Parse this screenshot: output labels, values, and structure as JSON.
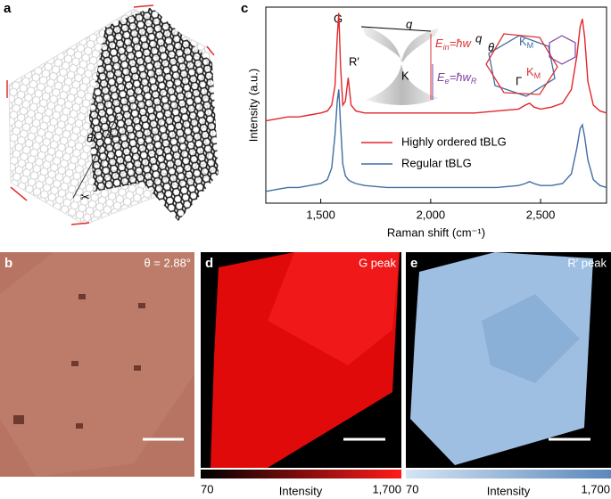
{
  "panels": {
    "a": {
      "label": "a",
      "angle": "θ"
    },
    "b": {
      "label": "b",
      "annotation": "θ = 2.88°"
    },
    "c": {
      "label": "c"
    },
    "d": {
      "label": "d",
      "annotation": "G peak",
      "colorbar": {
        "min": "70",
        "max": "1,700",
        "title": "Intensity"
      }
    },
    "e": {
      "label": "e",
      "annotation": "R′ peak",
      "colorbar": {
        "min": "70",
        "max": "1,700",
        "title": "Intensity"
      }
    }
  },
  "chart_data": {
    "type": "line",
    "x_label": "Raman shift (cm⁻¹)",
    "y_label": "Intensity (a.u.)",
    "x": [
      1250,
      1300,
      1350,
      1400,
      1450,
      1500,
      1530,
      1550,
      1565,
      1575,
      1582,
      1590,
      1600,
      1612,
      1625,
      1638,
      1660,
      1700,
      1800,
      1900,
      2000,
      2100,
      2200,
      2300,
      2400,
      2430,
      2450,
      2470,
      2500,
      2550,
      2600,
      2640,
      2665,
      2680,
      2690,
      2700,
      2715,
      2740,
      2770,
      2800
    ],
    "series": [
      {
        "name": "Highly ordered tBLG",
        "color": "#e3262b",
        "values": [
          0.42,
          0.43,
          0.44,
          0.44,
          0.45,
          0.46,
          0.47,
          0.5,
          0.6,
          0.85,
          0.97,
          0.7,
          0.5,
          0.52,
          0.64,
          0.5,
          0.47,
          0.46,
          0.46,
          0.46,
          0.46,
          0.46,
          0.46,
          0.47,
          0.48,
          0.5,
          0.51,
          0.49,
          0.48,
          0.49,
          0.51,
          0.58,
          0.75,
          0.9,
          0.94,
          0.85,
          0.62,
          0.5,
          0.47,
          0.46
        ]
      },
      {
        "name": "Regular tBLG",
        "color": "#3f6ea3",
        "values": [
          0.06,
          0.07,
          0.08,
          0.08,
          0.09,
          0.1,
          0.12,
          0.18,
          0.35,
          0.52,
          0.58,
          0.4,
          0.2,
          0.14,
          0.12,
          0.11,
          0.1,
          0.09,
          0.08,
          0.08,
          0.08,
          0.08,
          0.08,
          0.08,
          0.09,
          0.1,
          0.11,
          0.1,
          0.09,
          0.09,
          0.1,
          0.15,
          0.28,
          0.38,
          0.4,
          0.34,
          0.22,
          0.12,
          0.09,
          0.08
        ]
      }
    ],
    "xlim": [
      1250,
      2800
    ],
    "xticks": [
      {
        "value": 1500,
        "label": "1,500"
      },
      {
        "value": 2000,
        "label": "2,000"
      },
      {
        "value": 2500,
        "label": "2,500"
      }
    ],
    "ylim": [
      0,
      1
    ],
    "annotations": {
      "g": "G",
      "r": "R′",
      "q": "q",
      "k": "K",
      "e_in": {
        "main": "E",
        "sub": "in",
        "rest": "=ħw"
      },
      "e_e": {
        "main": "E",
        "sub": "e",
        "rest": "=ħw",
        "rest_sub": "R"
      },
      "q2": "q",
      "theta": "θ",
      "gamma": "Γ",
      "km1": {
        "main": "K",
        "sub": "M"
      },
      "km2": {
        "main": "K",
        "sub": "M"
      }
    }
  }
}
